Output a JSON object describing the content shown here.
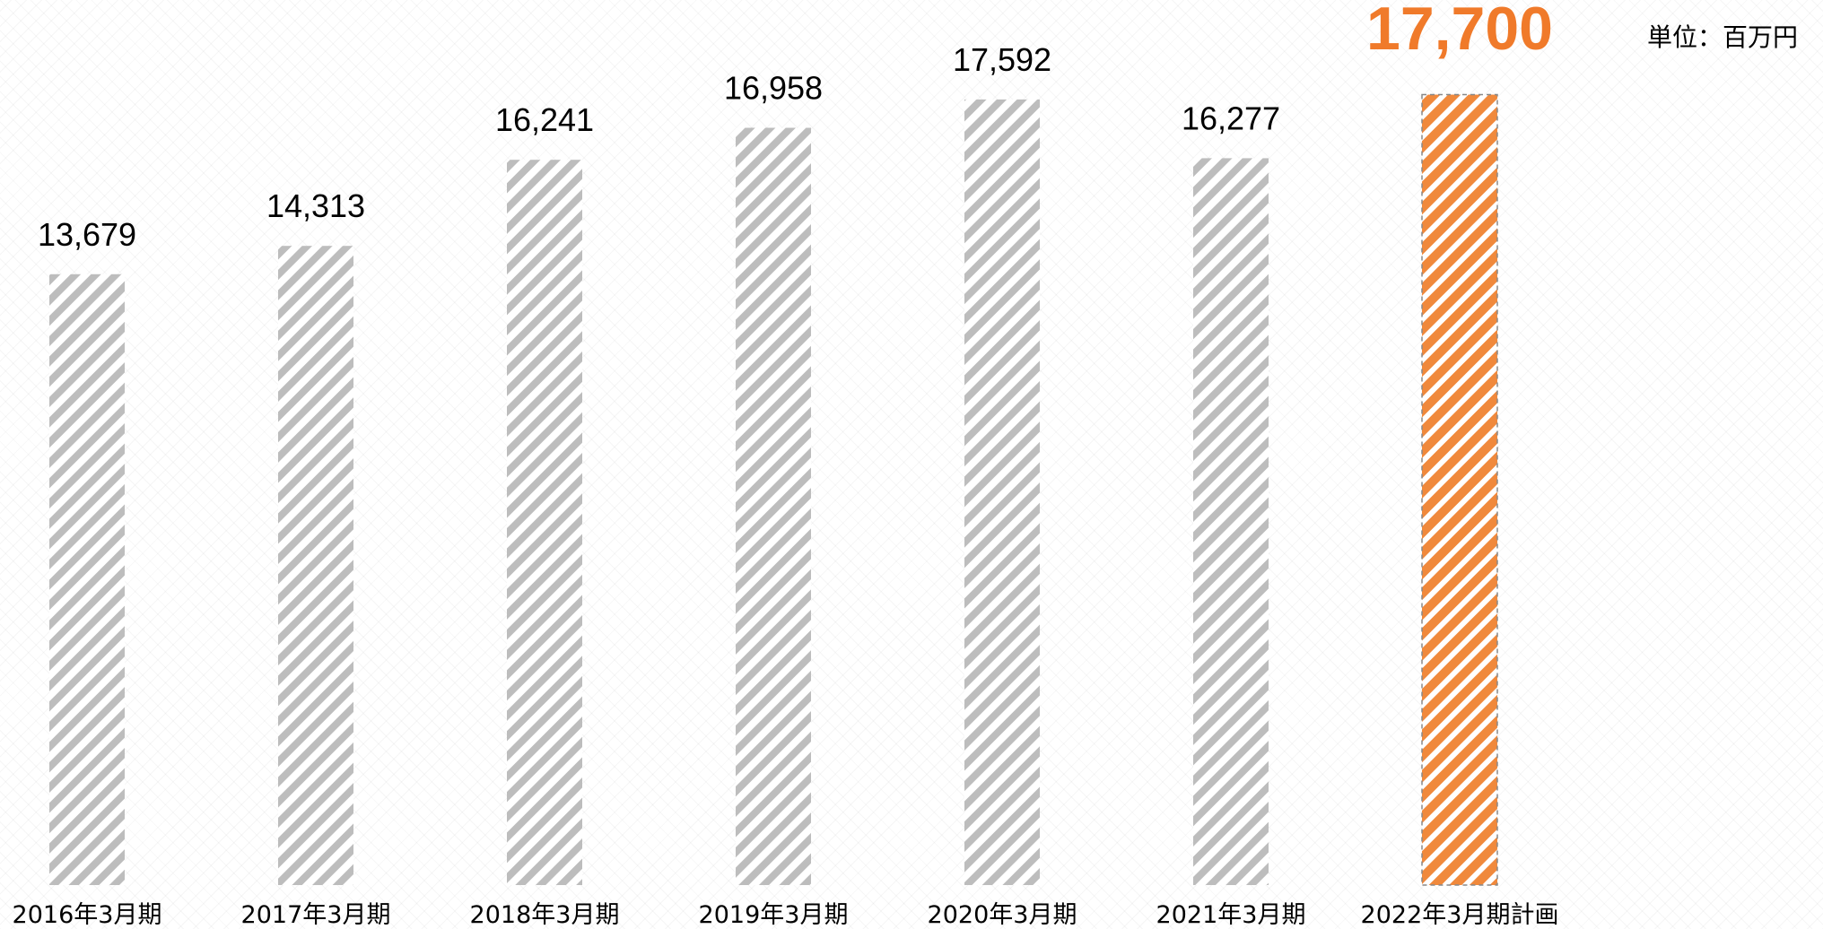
{
  "unit_label": "単位：百万円",
  "colors": {
    "bar_actual": "#bdbdbd",
    "bar_plan": "#f0893c",
    "highlight_text": "#f07a2a",
    "text": "#000000"
  },
  "chart_data": {
    "type": "bar",
    "categories": [
      "2016年3月期",
      "2017年3月期",
      "2018年3月期",
      "2019年3月期",
      "2020年3月期",
      "2021年3月期",
      "2022年3月期計画"
    ],
    "values": [
      13679,
      14313,
      16241,
      16958,
      17592,
      16277,
      17700
    ],
    "value_labels": [
      "13,679",
      "14,313",
      "16,241",
      "16,958",
      "17,592",
      "16,277",
      "17,700"
    ],
    "highlight_index": 6,
    "grid": false,
    "legend": "none",
    "title": "",
    "xlabel": "",
    "ylabel": ""
  }
}
